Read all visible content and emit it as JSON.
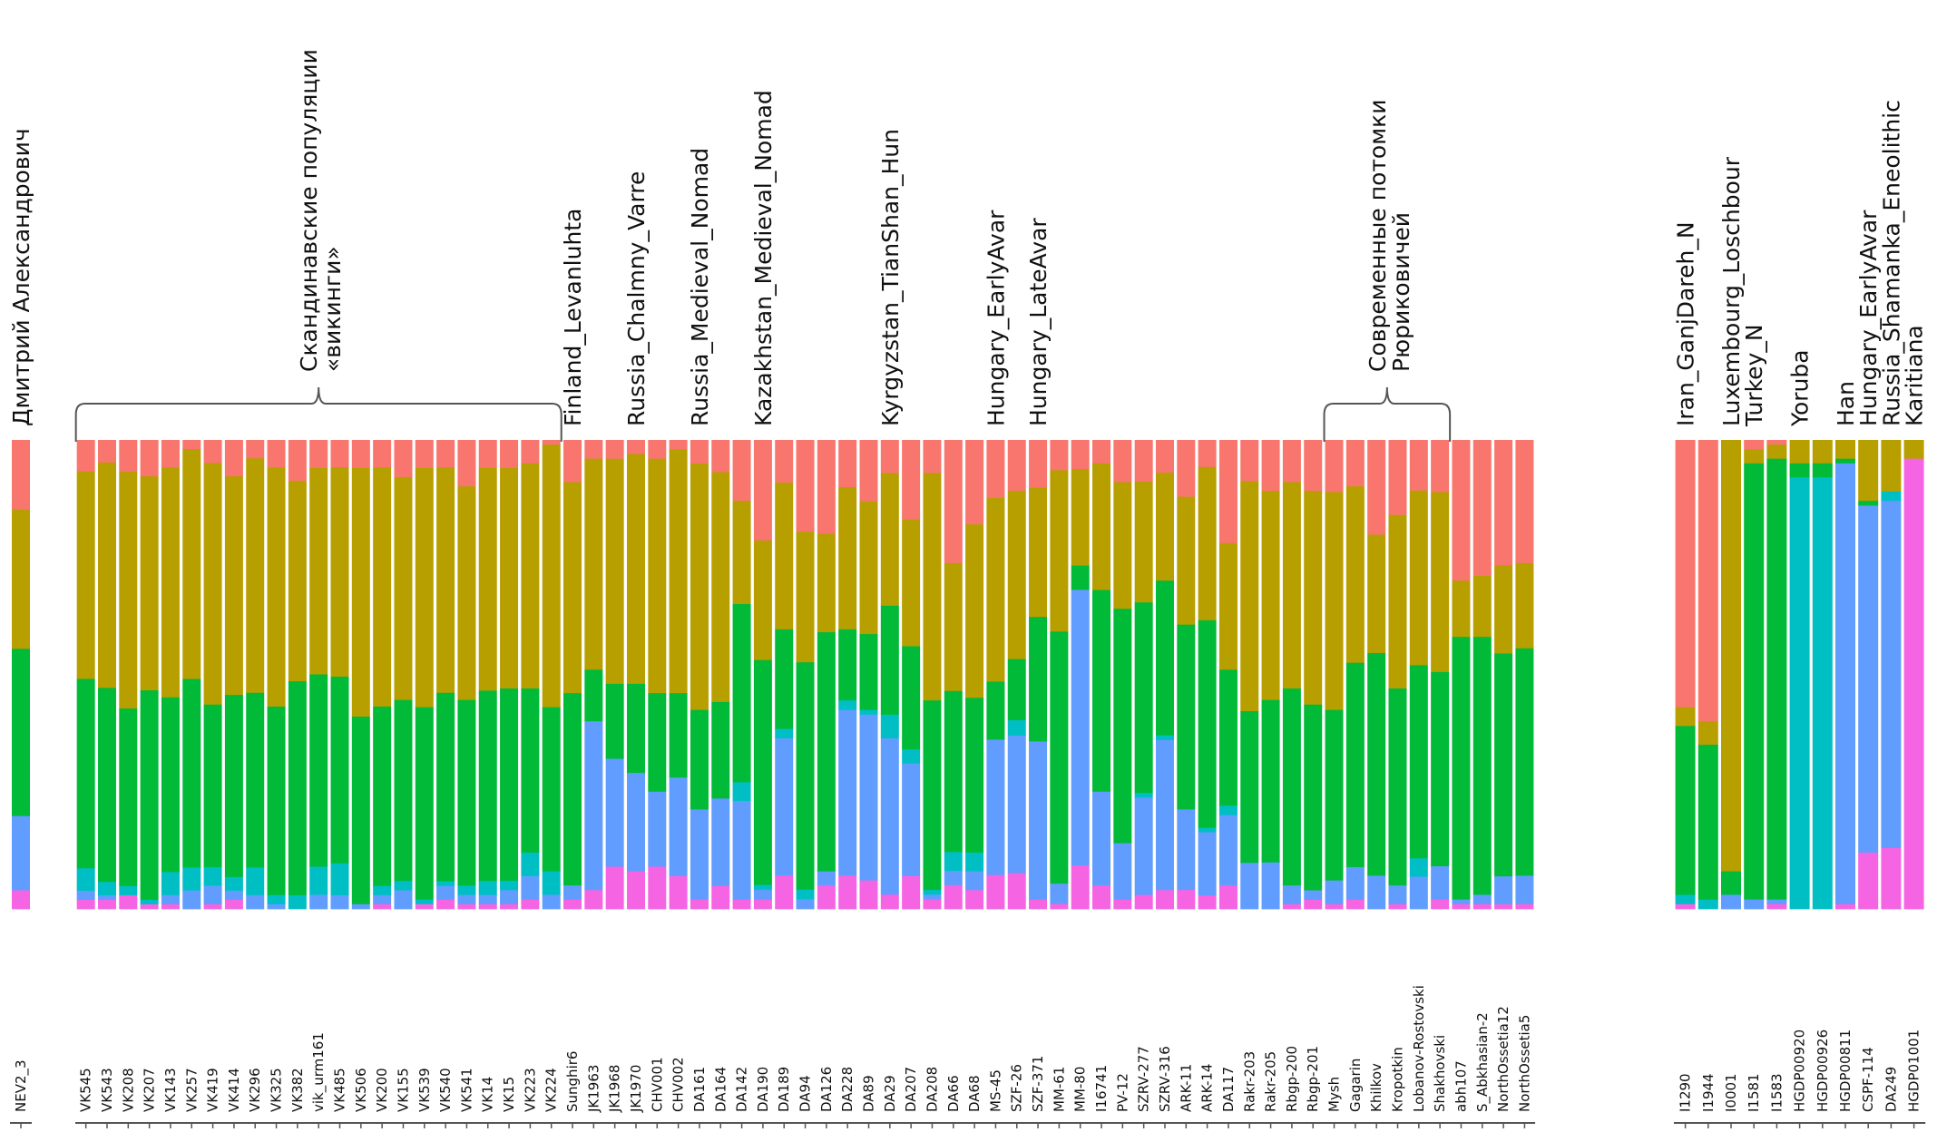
{
  "chart_data": {
    "type": "bar",
    "stacked": true,
    "normalized": true,
    "title": "",
    "xlabel": "",
    "ylabel": "",
    "ylim": [
      0,
      1
    ],
    "grid": false,
    "legend": "none",
    "components": [
      {
        "name": "K1",
        "color": "#F8766D"
      },
      {
        "name": "K2",
        "color": "#B79F00"
      },
      {
        "name": "K3",
        "color": "#00BA38"
      },
      {
        "name": "K4",
        "color": "#00BFC4"
      },
      {
        "name": "K5",
        "color": "#619CFF"
      },
      {
        "name": "K6",
        "color": "#F564E3"
      }
    ],
    "panels": [
      {
        "name": "target",
        "samples": [
          {
            "id": "NEV2_3",
            "v": [
              0.15,
              0.3,
              0.36,
              0.0,
              0.16,
              0.04
            ]
          }
        ]
      },
      {
        "name": "main",
        "samples": [
          {
            "id": "VK545",
            "v": [
              0.07,
              0.46,
              0.42,
              0.05,
              0.02,
              0.02
            ]
          },
          {
            "id": "VK543",
            "v": [
              0.05,
              0.5,
              0.43,
              0.03,
              0.01,
              0.02
            ]
          },
          {
            "id": "VK208",
            "v": [
              0.07,
              0.52,
              0.39,
              0.02,
              0.0,
              0.03
            ]
          },
          {
            "id": "VK207",
            "v": [
              0.08,
              0.47,
              0.46,
              0.01,
              0.0,
              0.01
            ]
          },
          {
            "id": "VK143",
            "v": [
              0.06,
              0.5,
              0.38,
              0.05,
              0.02,
              0.01
            ]
          },
          {
            "id": "VK257",
            "v": [
              0.02,
              0.5,
              0.41,
              0.05,
              0.04,
              0.0
            ]
          },
          {
            "id": "VK419",
            "v": [
              0.05,
              0.52,
              0.35,
              0.04,
              0.04,
              0.01
            ]
          },
          {
            "id": "VK414",
            "v": [
              0.08,
              0.48,
              0.4,
              0.03,
              0.02,
              0.02
            ]
          },
          {
            "id": "VK296",
            "v": [
              0.04,
              0.51,
              0.38,
              0.06,
              0.03,
              0.0
            ]
          },
          {
            "id": "VK325",
            "v": [
              0.06,
              0.52,
              0.41,
              0.02,
              0.01,
              0.0
            ]
          },
          {
            "id": "VK382",
            "v": [
              0.09,
              0.44,
              0.47,
              0.03,
              0.0,
              0.0
            ]
          },
          {
            "id": "vik_urm161",
            "v": [
              0.06,
              0.44,
              0.41,
              0.06,
              0.03,
              0.0
            ]
          },
          {
            "id": "VK485",
            "v": [
              0.06,
              0.46,
              0.41,
              0.07,
              0.03,
              0.0
            ]
          },
          {
            "id": "VK506",
            "v": [
              0.06,
              0.53,
              0.4,
              0.0,
              0.01,
              0.0
            ]
          },
          {
            "id": "VK200",
            "v": [
              0.06,
              0.52,
              0.39,
              0.02,
              0.02,
              0.01
            ]
          },
          {
            "id": "VK155",
            "v": [
              0.08,
              0.48,
              0.39,
              0.02,
              0.04,
              0.0
            ]
          },
          {
            "id": "VK539",
            "v": [
              0.06,
              0.51,
              0.41,
              0.01,
              0.0,
              0.01
            ]
          },
          {
            "id": "VK540",
            "v": [
              0.06,
              0.49,
              0.41,
              0.01,
              0.03,
              0.02
            ]
          },
          {
            "id": "VK541",
            "v": [
              0.1,
              0.46,
              0.4,
              0.02,
              0.02,
              0.01
            ]
          },
          {
            "id": "VK14",
            "v": [
              0.06,
              0.48,
              0.41,
              0.03,
              0.02,
              0.01
            ]
          },
          {
            "id": "VK15",
            "v": [
              0.06,
              0.47,
              0.41,
              0.02,
              0.03,
              0.01
            ]
          },
          {
            "id": "VK223",
            "v": [
              0.05,
              0.48,
              0.35,
              0.05,
              0.05,
              0.02
            ]
          },
          {
            "id": "VK224",
            "v": [
              0.01,
              0.56,
              0.35,
              0.05,
              0.03,
              0.0
            ]
          },
          {
            "id": "Sunghir6",
            "v": [
              0.09,
              0.45,
              0.41,
              0.0,
              0.03,
              0.02
            ]
          },
          {
            "id": "JK1963",
            "v": [
              0.04,
              0.45,
              0.11,
              0.0,
              0.36,
              0.04
            ]
          },
          {
            "id": "JK1968",
            "v": [
              0.04,
              0.48,
              0.16,
              0.0,
              0.23,
              0.09
            ]
          },
          {
            "id": "JK1970",
            "v": [
              0.03,
              0.49,
              0.19,
              0.0,
              0.21,
              0.08
            ]
          },
          {
            "id": "CHV001",
            "v": [
              0.04,
              0.5,
              0.21,
              0.0,
              0.16,
              0.09
            ]
          },
          {
            "id": "CHV002",
            "v": [
              0.02,
              0.52,
              0.18,
              0.0,
              0.21,
              0.07
            ]
          },
          {
            "id": "DA161",
            "v": [
              0.05,
              0.52,
              0.21,
              0.0,
              0.19,
              0.02
            ]
          },
          {
            "id": "DA164",
            "v": [
              0.07,
              0.5,
              0.21,
              0.0,
              0.19,
              0.05
            ]
          },
          {
            "id": "DA142",
            "v": [
              0.13,
              0.22,
              0.38,
              0.04,
              0.21,
              0.02
            ]
          },
          {
            "id": "DA190",
            "v": [
              0.21,
              0.25,
              0.47,
              0.01,
              0.02,
              0.02
            ]
          },
          {
            "id": "DA189",
            "v": [
              0.09,
              0.31,
              0.21,
              0.02,
              0.29,
              0.07
            ]
          },
          {
            "id": "DA94",
            "v": [
              0.19,
              0.27,
              0.47,
              0.02,
              0.02,
              0.0
            ]
          },
          {
            "id": "DA126",
            "v": [
              0.2,
              0.21,
              0.51,
              0.0,
              0.03,
              0.05
            ]
          },
          {
            "id": "DA228",
            "v": [
              0.1,
              0.3,
              0.15,
              0.02,
              0.35,
              0.07
            ]
          },
          {
            "id": "DA89",
            "v": [
              0.13,
              0.28,
              0.16,
              0.01,
              0.35,
              0.06
            ]
          },
          {
            "id": "DA29",
            "v": [
              0.07,
              0.28,
              0.23,
              0.05,
              0.33,
              0.03
            ]
          },
          {
            "id": "DA207",
            "v": [
              0.17,
              0.27,
              0.22,
              0.03,
              0.24,
              0.07
            ]
          },
          {
            "id": "DA208",
            "v": [
              0.07,
              0.48,
              0.4,
              0.01,
              0.01,
              0.02
            ]
          },
          {
            "id": "DA66",
            "v": [
              0.26,
              0.27,
              0.34,
              0.04,
              0.03,
              0.05
            ]
          },
          {
            "id": "DA68",
            "v": [
              0.18,
              0.37,
              0.33,
              0.04,
              0.04,
              0.04
            ]
          },
          {
            "id": "MS-45",
            "v": [
              0.12,
              0.38,
              0.12,
              0.0,
              0.28,
              0.07
            ]
          },
          {
            "id": "SZF-26",
            "v": [
              0.1,
              0.33,
              0.12,
              0.03,
              0.27,
              0.07
            ]
          },
          {
            "id": "SZF-371",
            "v": [
              0.1,
              0.27,
              0.26,
              0.0,
              0.33,
              0.02
            ]
          },
          {
            "id": "MM-61",
            "v": [
              0.06,
              0.32,
              0.5,
              0.0,
              0.04,
              0.01
            ]
          },
          {
            "id": "MM-80",
            "v": [
              0.06,
              0.2,
              0.05,
              0.0,
              0.57,
              0.09
            ]
          },
          {
            "id": "I16741",
            "v": [
              0.05,
              0.27,
              0.43,
              0.0,
              0.2,
              0.05
            ]
          },
          {
            "id": "PV-12",
            "v": [
              0.09,
              0.27,
              0.5,
              0.0,
              0.12,
              0.02
            ]
          },
          {
            "id": "SZRV-277",
            "v": [
              0.09,
              0.26,
              0.41,
              0.01,
              0.21,
              0.03
            ]
          },
          {
            "id": "SZRV-316",
            "v": [
              0.07,
              0.23,
              0.33,
              0.01,
              0.32,
              0.04
            ]
          },
          {
            "id": "ARK-11",
            "v": [
              0.12,
              0.27,
              0.39,
              0.0,
              0.17,
              0.04
            ]
          },
          {
            "id": "ARK-14",
            "v": [
              0.06,
              0.34,
              0.46,
              0.01,
              0.14,
              0.03
            ]
          },
          {
            "id": "DA117",
            "v": [
              0.22,
              0.27,
              0.29,
              0.02,
              0.15,
              0.05
            ]
          },
          {
            "id": "Rakr-203",
            "v": [
              0.09,
              0.5,
              0.33,
              0.0,
              0.1,
              0.0
            ]
          },
          {
            "id": "Rakr-205",
            "v": [
              0.11,
              0.45,
              0.35,
              0.0,
              0.1,
              0.0
            ]
          },
          {
            "id": "Rbgp-200",
            "v": [
              0.09,
              0.44,
              0.42,
              0.0,
              0.04,
              0.01
            ]
          },
          {
            "id": "Rbgp-201",
            "v": [
              0.11,
              0.46,
              0.4,
              0.0,
              0.02,
              0.02
            ]
          },
          {
            "id": "Mysh",
            "v": [
              0.11,
              0.46,
              0.36,
              0.0,
              0.05,
              0.01
            ]
          },
          {
            "id": "Gagarin",
            "v": [
              0.1,
              0.38,
              0.44,
              0.0,
              0.07,
              0.02
            ]
          },
          {
            "id": "Khilkov",
            "v": [
              0.2,
              0.25,
              0.47,
              0.0,
              0.07,
              0.0
            ]
          },
          {
            "id": "Kropotkin",
            "v": [
              0.16,
              0.37,
              0.42,
              0.0,
              0.04,
              0.01
            ]
          },
          {
            "id": "Lobanov-Rostovski",
            "v": [
              0.11,
              0.38,
              0.42,
              0.04,
              0.07,
              0.0
            ]
          },
          {
            "id": "Shakhovski",
            "v": [
              0.11,
              0.38,
              0.41,
              0.0,
              0.07,
              0.02
            ]
          },
          {
            "id": "abh107",
            "v": [
              0.3,
              0.12,
              0.56,
              0.0,
              0.01,
              0.01
            ]
          },
          {
            "id": "S_Abkhasian-2",
            "v": [
              0.29,
              0.13,
              0.55,
              0.0,
              0.02,
              0.01
            ]
          },
          {
            "id": "NorthOssetia12",
            "v": [
              0.27,
              0.19,
              0.48,
              0.0,
              0.06,
              0.01
            ]
          },
          {
            "id": "NorthOssetia5",
            "v": [
              0.26,
              0.18,
              0.48,
              0.0,
              0.06,
              0.01
            ]
          }
        ]
      },
      {
        "name": "reference",
        "samples": [
          {
            "id": "I1290",
            "v": [
              0.57,
              0.04,
              0.36,
              0.02,
              0.0,
              0.01
            ]
          },
          {
            "id": "I1944",
            "v": [
              0.6,
              0.05,
              0.33,
              0.02,
              0.0,
              0.0
            ]
          },
          {
            "id": "I0001",
            "v": [
              0.0,
              0.92,
              0.05,
              0.0,
              0.03,
              0.0
            ]
          },
          {
            "id": "I1581",
            "v": [
              0.02,
              0.03,
              0.93,
              0.0,
              0.02,
              0.0
            ]
          },
          {
            "id": "I1583",
            "v": [
              0.01,
              0.03,
              0.94,
              0.0,
              0.01,
              0.01
            ]
          },
          {
            "id": "HGDP00920",
            "v": [
              0.0,
              0.05,
              0.03,
              0.92,
              0.0,
              0.0
            ]
          },
          {
            "id": "HGDP00926",
            "v": [
              0.0,
              0.05,
              0.03,
              0.92,
              0.0,
              0.0
            ]
          },
          {
            "id": "HGDP00811",
            "v": [
              0.0,
              0.04,
              0.01,
              0.0,
              0.94,
              0.01
            ]
          },
          {
            "id": "CSPF-114",
            "v": [
              0.0,
              0.13,
              0.01,
              0.0,
              0.74,
              0.12
            ]
          },
          {
            "id": "DA249",
            "v": [
              0.0,
              0.11,
              0.0,
              0.02,
              0.74,
              0.13
            ]
          },
          {
            "id": "HGDP01001",
            "v": [
              0.0,
              0.04,
              0.0,
              0.0,
              0.0,
              0.96
            ]
          }
        ]
      }
    ],
    "annotations": [
      {
        "text": "Дмитрий Александрович",
        "panel": "target",
        "target": "NEV2_3"
      },
      {
        "text": "Скандинавские популяции",
        "line2": "«викинги»",
        "type": "brace",
        "from": "VK545",
        "to": "VK224"
      },
      {
        "text": "Finland_Levanluhta",
        "target": "Sunghir6"
      },
      {
        "text": "Russia_Chalmny_Varre",
        "target": "JK1970"
      },
      {
        "text": "Russia_Medieval_Nomad",
        "target": "DA161"
      },
      {
        "text": "Kazakhstan_Medieval_Nomad",
        "target": "DA190"
      },
      {
        "text": "Kyrgyzstan_TianShan_Hun",
        "target": "DA29"
      },
      {
        "text": "Hungary_EarlyAvar",
        "target": "MS-45"
      },
      {
        "text": "Hungary_LateAvar",
        "target": "SZF-371"
      },
      {
        "text": "Современные потомки",
        "line2": "Рюриковичей",
        "type": "brace",
        "from": "Mysh",
        "to": "Shakhovski"
      },
      {
        "text": "Iran_GanjDareh_N",
        "target": "I1290"
      },
      {
        "text": "Luxembourg_Loschbour",
        "target": "I0001"
      },
      {
        "text": "Turkey_N",
        "target": "I1581"
      },
      {
        "text": "Yoruba",
        "target": "HGDP00920"
      },
      {
        "text": "Han",
        "target": "HGDP00811"
      },
      {
        "text": "Hungary_EarlyAvar",
        "target": "CSPF-114"
      },
      {
        "text": "Russia_Shamanka_Eneolithic",
        "target": "DA249"
      },
      {
        "text": "Karitiana",
        "target": "HGDP01001"
      }
    ]
  }
}
